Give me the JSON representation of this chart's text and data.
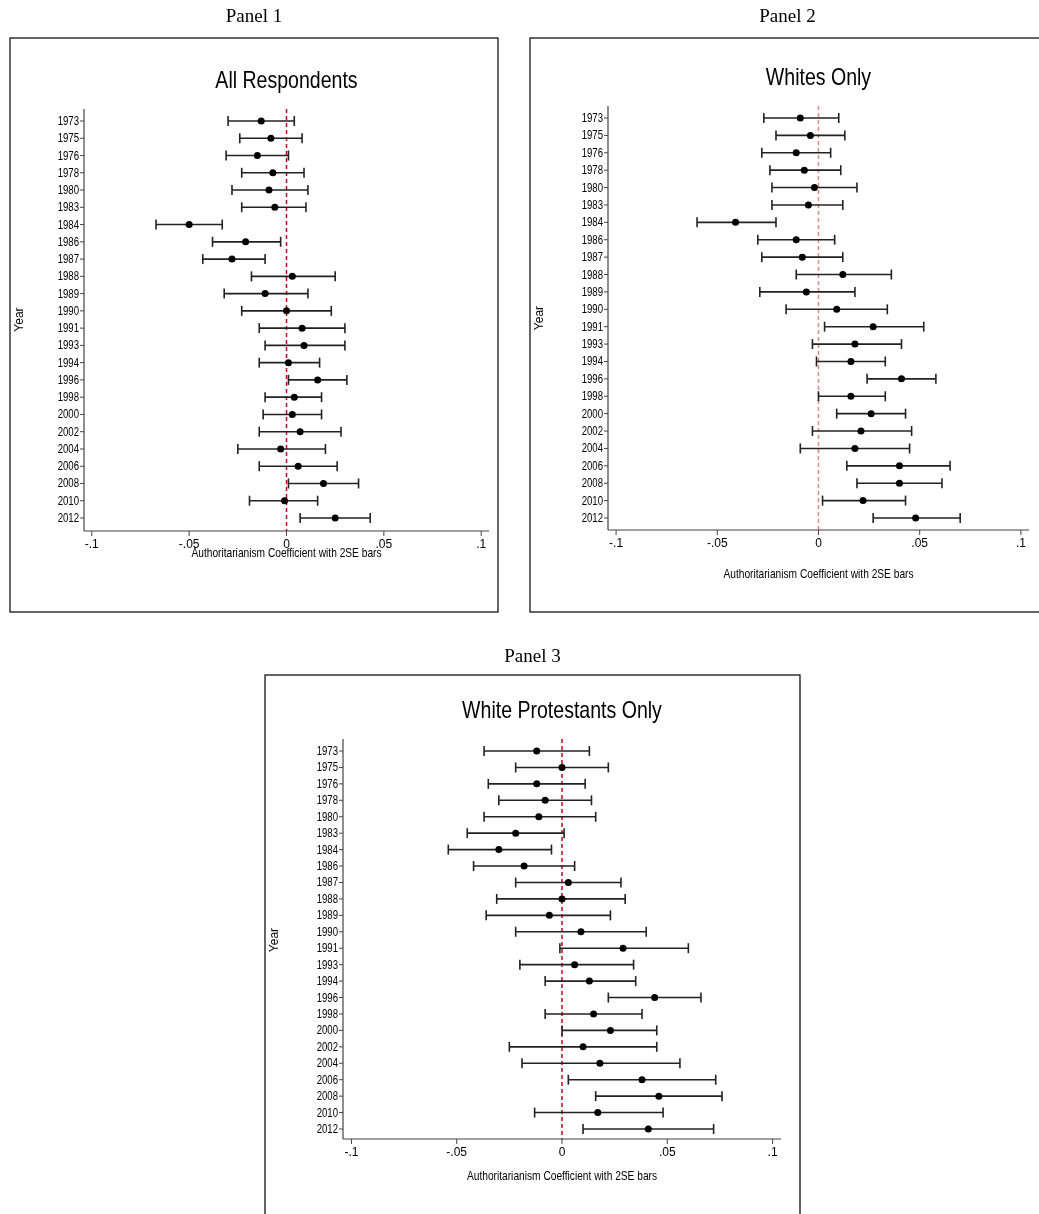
{
  "chart_data": [
    {
      "type": "scatter",
      "orientation": "horizontal",
      "title": "Panel 1",
      "subtitle": "All Respondents",
      "xlabel": "Authoritarianism Coefficient with 2SE bars",
      "ylabel": "Year",
      "color": "#000000",
      "marker": "circle",
      "grid": false,
      "categories": [
        "1973",
        "1975",
        "1976",
        "1978",
        "1980",
        "1983",
        "1984",
        "1986",
        "1987",
        "1988",
        "1989",
        "1990",
        "1991",
        "1993",
        "1994",
        "1996",
        "1998",
        "2000",
        "2002",
        "2004",
        "2006",
        "2008",
        "2010",
        "2012"
      ],
      "values": [
        -0.013,
        -0.008,
        -0.015,
        -0.007,
        -0.009,
        -0.006,
        -0.05,
        -0.021,
        -0.028,
        0.003,
        -0.011,
        0.0,
        0.008,
        0.009,
        0.001,
        0.016,
        0.004,
        0.003,
        0.007,
        -0.003,
        0.006,
        0.019,
        -0.001,
        0.025
      ],
      "errors": [
        [
          -0.03,
          0.004
        ],
        [
          -0.024,
          0.008
        ],
        [
          -0.031,
          0.001
        ],
        [
          -0.023,
          0.009
        ],
        [
          -0.028,
          0.011
        ],
        [
          -0.023,
          0.01
        ],
        [
          -0.067,
          -0.033
        ],
        [
          -0.038,
          -0.003
        ],
        [
          -0.043,
          -0.011
        ],
        [
          -0.018,
          0.025
        ],
        [
          -0.032,
          0.011
        ],
        [
          -0.023,
          0.023
        ],
        [
          -0.014,
          0.03
        ],
        [
          -0.011,
          0.03
        ],
        [
          -0.014,
          0.017
        ],
        [
          0.001,
          0.031
        ],
        [
          -0.011,
          0.018
        ],
        [
          -0.012,
          0.018
        ],
        [
          -0.014,
          0.028
        ],
        [
          -0.025,
          0.02
        ],
        [
          -0.014,
          0.026
        ],
        [
          0.001,
          0.037
        ],
        [
          -0.019,
          0.016
        ],
        [
          0.007,
          0.043
        ]
      ],
      "xlim": [
        -0.104,
        0.104
      ],
      "xticks": [
        {
          "value": -0.1,
          "label": "-.1"
        },
        {
          "value": -0.05,
          "label": "-.05"
        },
        {
          "value": 0,
          "label": "0"
        },
        {
          "value": 0.05,
          "label": ".05"
        },
        {
          "value": 0.1,
          "label": ".1"
        }
      ],
      "ref_lines": [
        {
          "axis": "x",
          "value": 0,
          "color": "#cc0022",
          "line_style": "dashed"
        }
      ]
    },
    {
      "type": "scatter",
      "orientation": "horizontal",
      "title": "Panel 2",
      "subtitle": "Whites Only",
      "xlabel": "Authoritarianism Coefficient with 2SE bars",
      "ylabel": "Year",
      "color": "#000000",
      "marker": "circle",
      "grid": false,
      "categories": [
        "1973",
        "1975",
        "1976",
        "1978",
        "1980",
        "1983",
        "1984",
        "1986",
        "1987",
        "1988",
        "1989",
        "1990",
        "1991",
        "1993",
        "1994",
        "1996",
        "1998",
        "2000",
        "2002",
        "2004",
        "2006",
        "2008",
        "2010",
        "2012"
      ],
      "values": [
        -0.009,
        -0.004,
        -0.011,
        -0.007,
        -0.002,
        -0.005,
        -0.041,
        -0.011,
        -0.008,
        0.012,
        -0.006,
        0.009,
        0.027,
        0.018,
        0.016,
        0.041,
        0.016,
        0.026,
        0.021,
        0.018,
        0.04,
        0.04,
        0.022,
        0.048
      ],
      "errors": [
        [
          -0.027,
          0.01
        ],
        [
          -0.021,
          0.013
        ],
        [
          -0.028,
          0.006
        ],
        [
          -0.024,
          0.011
        ],
        [
          -0.023,
          0.019
        ],
        [
          -0.023,
          0.012
        ],
        [
          -0.06,
          -0.021
        ],
        [
          -0.03,
          0.008
        ],
        [
          -0.028,
          0.012
        ],
        [
          -0.011,
          0.036
        ],
        [
          -0.029,
          0.018
        ],
        [
          -0.016,
          0.034
        ],
        [
          0.003,
          0.052
        ],
        [
          -0.003,
          0.041
        ],
        [
          -0.001,
          0.033
        ],
        [
          0.024,
          0.058
        ],
        [
          0.0,
          0.033
        ],
        [
          0.009,
          0.043
        ],
        [
          -0.003,
          0.046
        ],
        [
          -0.009,
          0.045
        ],
        [
          0.014,
          0.065
        ],
        [
          0.019,
          0.061
        ],
        [
          0.002,
          0.043
        ],
        [
          0.027,
          0.07
        ]
      ],
      "xlim": [
        -0.104,
        0.104
      ],
      "xticks": [
        {
          "value": -0.1,
          "label": "-.1"
        },
        {
          "value": -0.05,
          "label": "-.05"
        },
        {
          "value": 0,
          "label": "0"
        },
        {
          "value": 0.05,
          "label": ".05"
        },
        {
          "value": 0.1,
          "label": ".1"
        }
      ],
      "ref_lines": [
        {
          "axis": "x",
          "value": 0,
          "color": "#e08888",
          "line_style": "dashed"
        }
      ]
    },
    {
      "type": "scatter",
      "orientation": "horizontal",
      "title": "Panel 3",
      "subtitle": "White Protestants Only",
      "xlabel": "Authoritarianism Coefficient with 2SE bars",
      "ylabel": "Year",
      "color": "#000000",
      "marker": "circle",
      "grid": false,
      "categories": [
        "1973",
        "1975",
        "1976",
        "1978",
        "1980",
        "1983",
        "1984",
        "1986",
        "1987",
        "1988",
        "1989",
        "1990",
        "1991",
        "1993",
        "1994",
        "1996",
        "1998",
        "2000",
        "2002",
        "2004",
        "2006",
        "2008",
        "2010",
        "2012"
      ],
      "values": [
        -0.012,
        0.0,
        -0.012,
        -0.008,
        -0.011,
        -0.022,
        -0.03,
        -0.018,
        0.003,
        0.0,
        -0.006,
        0.009,
        0.029,
        0.006,
        0.013,
        0.044,
        0.015,
        0.023,
        0.01,
        0.018,
        0.038,
        0.046,
        0.017,
        0.041
      ],
      "errors": [
        [
          -0.037,
          0.013
        ],
        [
          -0.022,
          0.022
        ],
        [
          -0.035,
          0.011
        ],
        [
          -0.03,
          0.014
        ],
        [
          -0.037,
          0.016
        ],
        [
          -0.045,
          0.001
        ],
        [
          -0.054,
          -0.005
        ],
        [
          -0.042,
          0.006
        ],
        [
          -0.022,
          0.028
        ],
        [
          -0.031,
          0.03
        ],
        [
          -0.036,
          0.023
        ],
        [
          -0.022,
          0.04
        ],
        [
          -0.001,
          0.06
        ],
        [
          -0.02,
          0.034
        ],
        [
          -0.008,
          0.035
        ],
        [
          0.022,
          0.066
        ],
        [
          -0.008,
          0.038
        ],
        [
          0.0,
          0.045
        ],
        [
          -0.025,
          0.045
        ],
        [
          -0.019,
          0.056
        ],
        [
          0.003,
          0.073
        ],
        [
          0.016,
          0.076
        ],
        [
          -0.013,
          0.048
        ],
        [
          0.01,
          0.072
        ]
      ],
      "xlim": [
        -0.104,
        0.104
      ],
      "xticks": [
        {
          "value": -0.1,
          "label": "-.1"
        },
        {
          "value": -0.05,
          "label": "-.05"
        },
        {
          "value": 0,
          "label": "0"
        },
        {
          "value": 0.05,
          "label": ".05"
        },
        {
          "value": 0.1,
          "label": ".1"
        }
      ],
      "ref_lines": [
        {
          "axis": "x",
          "value": 0,
          "color": "#cc0022",
          "line_style": "dashed"
        }
      ]
    }
  ]
}
